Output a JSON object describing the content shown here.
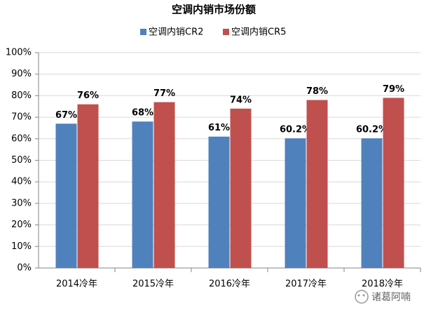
{
  "chart_data": {
    "type": "bar",
    "title": "空调内销市场份额",
    "categories": [
      "2014冷年",
      "2015冷年",
      "2016冷年",
      "2017冷年",
      "2018冷年"
    ],
    "series": [
      {
        "name": "空调内销CR2",
        "color": "#4f81bd",
        "values": [
          67,
          68,
          61,
          60.2,
          60.2
        ],
        "value_labels": [
          "67%",
          "68%",
          "61%",
          "60.2%",
          "60.2%"
        ]
      },
      {
        "name": "空调内销CR5",
        "color": "#c0504d",
        "values": [
          76,
          77,
          74,
          78,
          79
        ],
        "value_labels": [
          "76%",
          "77%",
          "74%",
          "78%",
          "79%"
        ]
      }
    ],
    "ylim": [
      0,
      100
    ],
    "yticks": [
      {
        "value": 0,
        "label": "0%"
      },
      {
        "value": 10,
        "label": "10%"
      },
      {
        "value": 20,
        "label": "20%"
      },
      {
        "value": 30,
        "label": "30%"
      },
      {
        "value": 40,
        "label": "40%"
      },
      {
        "value": 50,
        "label": "50%"
      },
      {
        "value": 60,
        "label": "60%"
      },
      {
        "value": 70,
        "label": "70%"
      },
      {
        "value": 80,
        "label": "80%"
      },
      {
        "value": 90,
        "label": "90%"
      },
      {
        "value": 100,
        "label": "100%"
      }
    ],
    "grid": true,
    "legend": "top",
    "watermark": "诸葛阿喃"
  }
}
